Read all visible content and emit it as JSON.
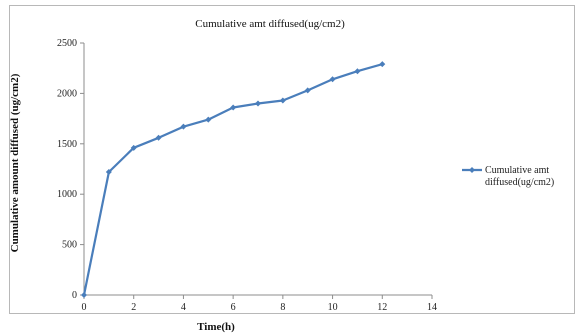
{
  "chart_data": {
    "type": "line",
    "title": "Cumulative amt diffused(ug/cm2)",
    "xlabel": "Time(h)",
    "ylabel": "Cumulative amount diffused (ug/cm2)",
    "xlim": [
      0,
      14
    ],
    "ylim": [
      0,
      2500
    ],
    "x_ticks": [
      "0",
      "2",
      "4",
      "6",
      "8",
      "10",
      "12",
      "14"
    ],
    "y_ticks": [
      "0",
      "500",
      "1000",
      "1500",
      "2000",
      "2500"
    ],
    "grid": false,
    "legend_position": "right",
    "series": [
      {
        "name": "Cumulative amt diffused(ug/cm2)",
        "color": "#4a7ebb",
        "x": [
          0,
          1,
          2,
          3,
          4,
          5,
          6,
          7,
          8,
          9,
          10,
          11,
          12
        ],
        "y": [
          0,
          1220,
          1460,
          1560,
          1670,
          1740,
          1860,
          1900,
          1930,
          2030,
          2140,
          2220,
          2290
        ]
      }
    ]
  }
}
